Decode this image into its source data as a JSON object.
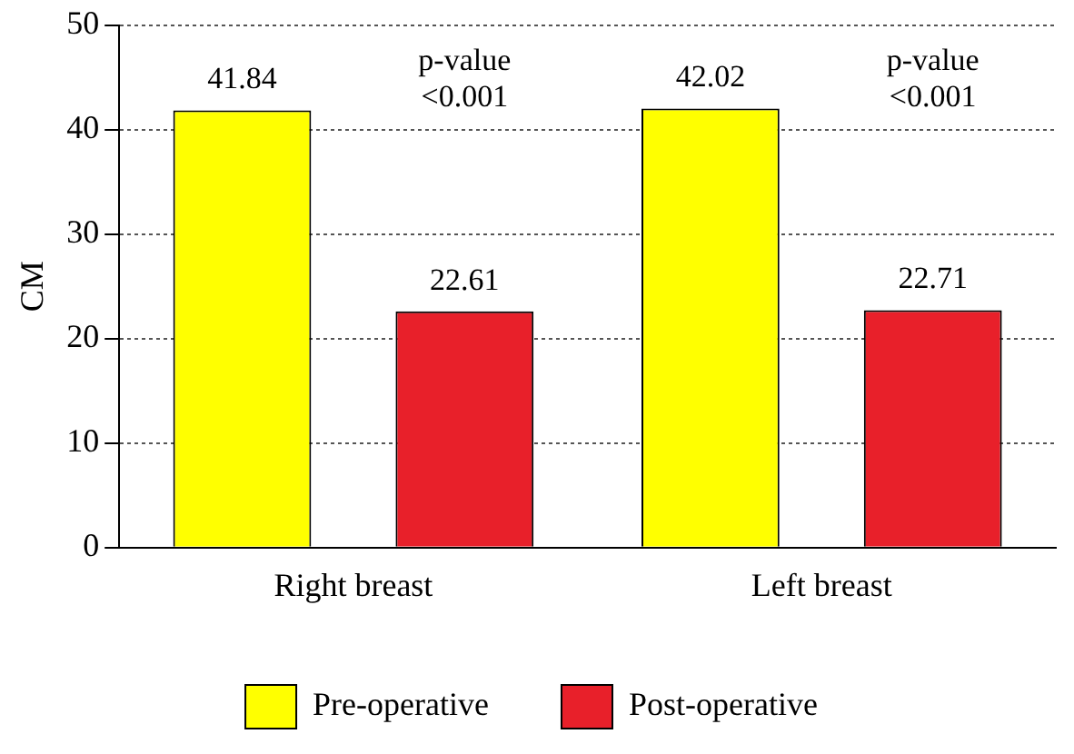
{
  "chart_data": {
    "type": "bar",
    "ylabel": "CM",
    "categories": [
      "Right breast",
      "Left breast"
    ],
    "series": [
      {
        "name": "Pre-operative",
        "color": "#ffff00",
        "values": [
          41.84,
          42.02
        ]
      },
      {
        "name": "Post-operative",
        "color": "#e8202a",
        "values": [
          22.61,
          22.71
        ]
      }
    ],
    "ylim": [
      0,
      50
    ],
    "yticks": [
      0,
      10,
      20,
      30,
      40,
      50
    ],
    "grid": "y",
    "legend": "bottom",
    "data_labels": true,
    "annotations": [
      "p-value <0.001",
      "p-value <0.001"
    ]
  }
}
